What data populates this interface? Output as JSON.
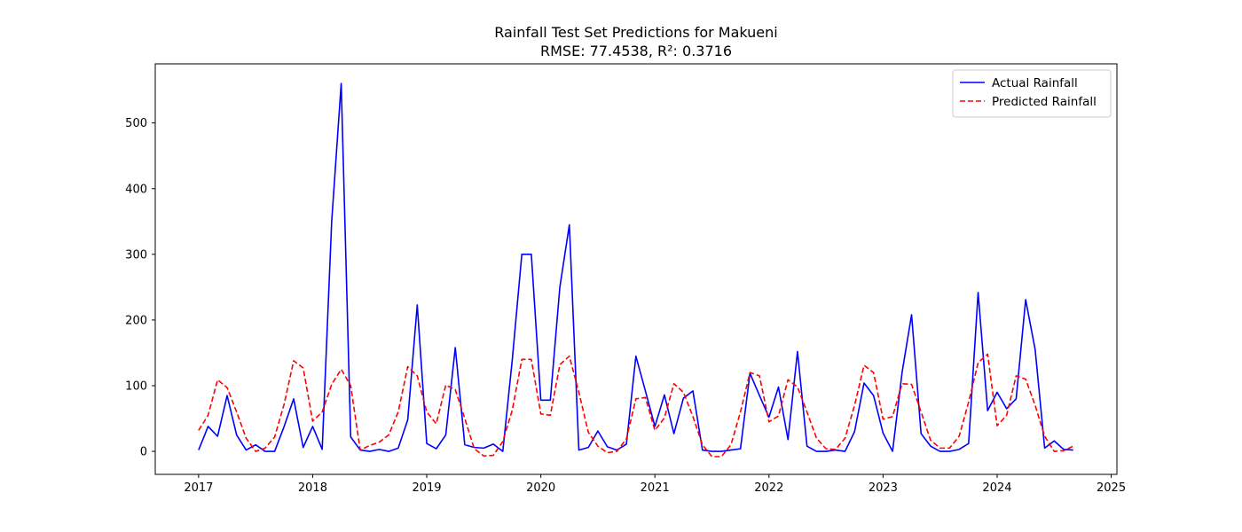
{
  "chart_data": {
    "type": "line",
    "title": "Rainfall Test Set Predictions for Makueni",
    "subtitle": "RMSE: 77.4538, R²: 0.3716",
    "xlabel": "",
    "ylabel": "",
    "xlim": [
      2016.62,
      2025.05
    ],
    "ylim": [
      -35,
      590
    ],
    "x_ticks": [
      2017,
      2018,
      2019,
      2020,
      2021,
      2022,
      2023,
      2024,
      2025
    ],
    "x_tick_labels": [
      "2017",
      "2018",
      "2019",
      "2020",
      "2021",
      "2022",
      "2023",
      "2024",
      "2025"
    ],
    "y_ticks": [
      0,
      100,
      200,
      300,
      400,
      500
    ],
    "y_tick_labels": [
      "0",
      "100",
      "200",
      "300",
      "400",
      "500"
    ],
    "grid": false,
    "legend_position": "top-right",
    "x_start_year": 2017,
    "x_start_month": 1,
    "series": [
      {
        "name": "Actual Rainfall",
        "color": "#0000ff",
        "dash": "solid",
        "values": [
          2,
          38,
          23,
          85,
          25,
          2,
          10,
          0,
          0,
          38,
          80,
          6,
          38,
          3,
          350,
          560,
          22,
          2,
          0,
          3,
          0,
          5,
          48,
          223,
          12,
          4,
          25,
          158,
          10,
          6,
          5,
          11,
          0,
          140,
          300,
          300,
          78,
          78,
          250,
          345,
          2,
          6,
          31,
          7,
          2,
          11,
          145,
          92,
          38,
          86,
          27,
          81,
          92,
          2,
          0,
          0,
          2,
          4,
          119,
          85,
          52,
          98,
          18,
          152,
          8,
          0,
          0,
          2,
          0,
          30,
          104,
          85,
          28,
          0,
          120,
          208,
          27,
          8,
          0,
          0,
          3,
          12,
          242,
          62,
          90,
          65,
          80,
          231,
          155,
          5,
          16,
          3,
          2
        ]
      },
      {
        "name": "Predicted Rainfall",
        "color": "#ff0000",
        "dash": "dashed",
        "values": [
          32,
          55,
          109,
          97,
          60,
          20,
          0,
          5,
          22,
          72,
          138,
          127,
          46,
          60,
          102,
          125,
          100,
          2,
          9,
          14,
          25,
          60,
          129,
          115,
          60,
          42,
          101,
          94,
          50,
          4,
          -7,
          -6,
          15,
          63,
          140,
          140,
          57,
          55,
          132,
          145,
          90,
          29,
          8,
          -2,
          0,
          19,
          80,
          82,
          32,
          51,
          103,
          90,
          53,
          10,
          -8,
          -8,
          10,
          60,
          120,
          115,
          45,
          54,
          109,
          98,
          60,
          20,
          4,
          3,
          20,
          70,
          131,
          120,
          49,
          53,
          103,
          102,
          60,
          17,
          5,
          5,
          23,
          75,
          135,
          148,
          39,
          55,
          115,
          110,
          70,
          23,
          0,
          1,
          8
        ]
      }
    ]
  }
}
